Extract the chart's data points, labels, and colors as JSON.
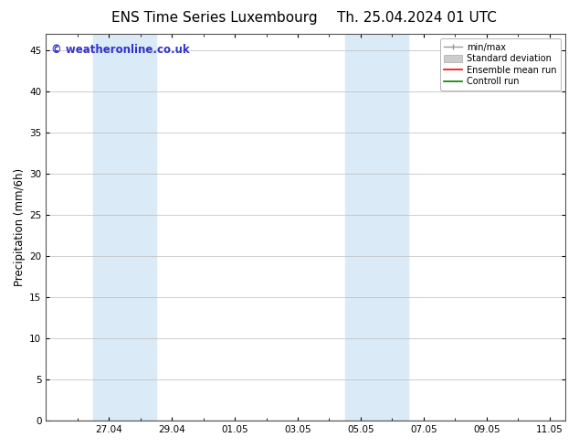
{
  "title_left": "ENS Time Series Luxembourg",
  "title_right": "Th. 25.04.2024 01 UTC",
  "ylabel": "Precipitation (mm/6h)",
  "ylim": [
    0,
    47
  ],
  "yticks": [
    0,
    5,
    10,
    15,
    20,
    25,
    30,
    35,
    40,
    45
  ],
  "xtick_labels": [
    "27.04",
    "29.04",
    "01.05",
    "03.05",
    "05.05",
    "07.05",
    "09.05",
    "11.05"
  ],
  "xtick_positions": [
    2,
    4,
    6,
    8,
    10,
    12,
    14,
    16
  ],
  "x_minor_positions": [
    1,
    2,
    3,
    4,
    5,
    6,
    7,
    8,
    9,
    10,
    11,
    12,
    13,
    14,
    15,
    16
  ],
  "xlim": [
    0,
    16.5
  ],
  "background_color": "#ffffff",
  "plot_bg_color": "#ffffff",
  "shaded_bands": [
    {
      "x_start": 1.5,
      "x_end": 3.5,
      "color": "#daeaf7"
    },
    {
      "x_start": 9.5,
      "x_end": 11.5,
      "color": "#daeaf7"
    }
  ],
  "legend_items": [
    {
      "label": "min/max",
      "color": "#999999",
      "style": "line_with_caps"
    },
    {
      "label": "Standard deviation",
      "color": "#cccccc",
      "style": "bar"
    },
    {
      "label": "Ensemble mean run",
      "color": "#ff0000",
      "style": "line"
    },
    {
      "label": "Controll run",
      "color": "#008000",
      "style": "line"
    }
  ],
  "watermark_text": "© weatheronline.co.uk",
  "watermark_color": "#3333cc",
  "watermark_fontsize": 8.5,
  "title_fontsize": 11,
  "tick_fontsize": 7.5,
  "ylabel_fontsize": 8.5,
  "legend_fontsize": 7,
  "grid_color": "#bbbbbb",
  "spine_color": "#555555"
}
